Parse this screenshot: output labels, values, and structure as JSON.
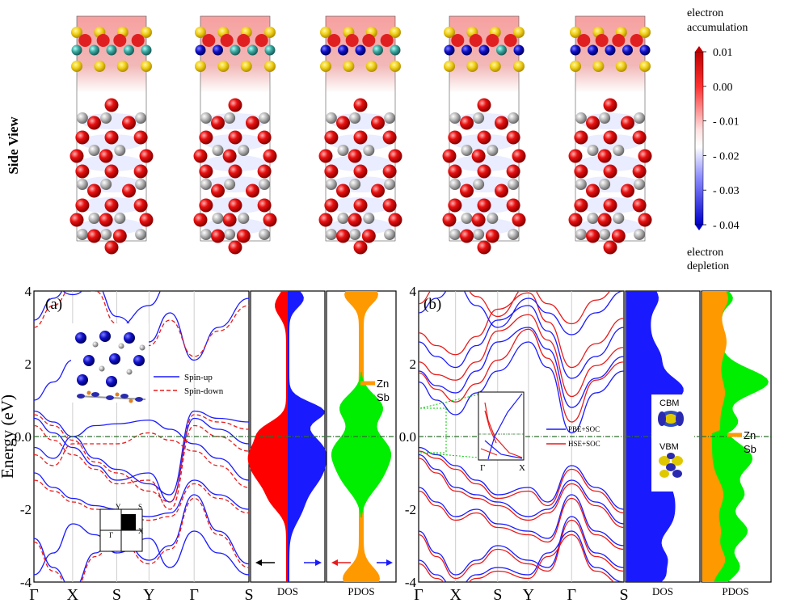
{
  "top": {
    "side_label": "Side View",
    "colorbar": {
      "top_label_line1": "electron",
      "top_label_line2": "accumulation",
      "bottom_label_line1": "electron",
      "bottom_label_line2": "depletion",
      "ticks": [
        "0.01",
        "0.00",
        "- 0.01",
        "- 0.02",
        "- 0.03",
        "- 0.04"
      ],
      "colors": {
        "max": "#c00000",
        "mid": "#ffffff",
        "min": "#0000cc"
      }
    },
    "panel_count": 5
  },
  "y_axis_label": "Energy (eV)",
  "y_ticks": [
    "4",
    "2",
    "0.0",
    "-2",
    "-4"
  ],
  "panel_a": {
    "label": "(a)",
    "x_ticks": [
      "Γ",
      "X",
      "S",
      "Y",
      "Γ",
      "S"
    ],
    "legend": {
      "up": "Spin-up",
      "down": "Spin-down"
    },
    "bz": {
      "g": "Γ",
      "x": "X",
      "y": "Y",
      "s": "S"
    },
    "dos_label": "DOS",
    "pdos_label": "PDOS",
    "pdos_legend": {
      "zn": "Zn",
      "sb": "Sb"
    }
  },
  "panel_b": {
    "label": "(b)",
    "x_ticks": [
      "Γ",
      "X",
      "S",
      "Y",
      "Γ",
      "S"
    ],
    "legend": {
      "pbe": "PBE+SOC",
      "hse": "HSE+SOC"
    },
    "inset_ticks": {
      "g": "Γ",
      "x": "X"
    },
    "cbm": "CBM",
    "vbm": "VBM",
    "dos_label": "DOS",
    "pdos_label": "PDOS",
    "pdos_legend": {
      "zn": "Zn",
      "sb": "Sb"
    }
  },
  "colors": {
    "spin_up": "#1a1aff",
    "spin_down": "#e81c1c",
    "zn": "#ff9900",
    "sb": "#00ee00",
    "fermi": "#2d6e2d"
  }
}
